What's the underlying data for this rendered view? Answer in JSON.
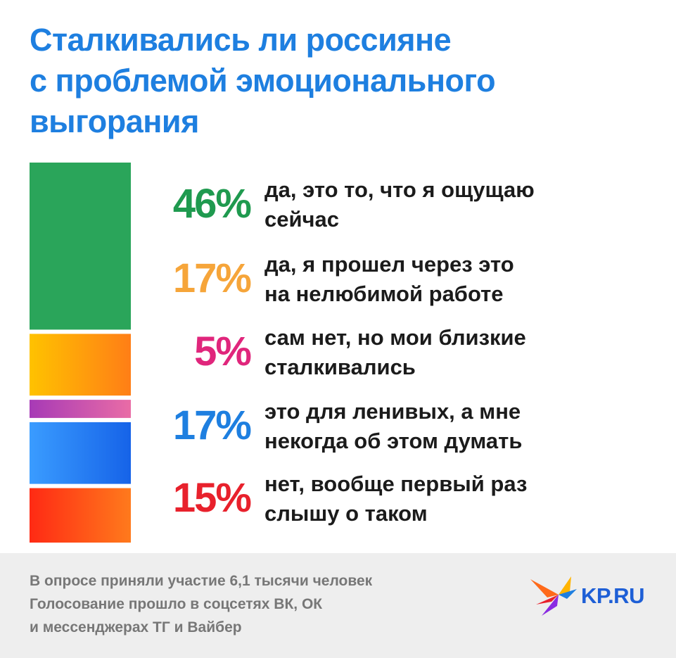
{
  "title_lines": [
    "Сталкивались ли россияне",
    "с проблемой эмоционального",
    "выгорания"
  ],
  "chart_data": {
    "type": "bar",
    "stacked": true,
    "categories": [
      "да, это то, что я ощущаю сейчас",
      "да, я прошел через это на нелюбимой работе",
      "сам нет, но мои близкие сталкивались",
      "это для ленивых, а мне некогда об этом думать",
      "нет, вообще первый раз слышу о таком"
    ],
    "values": [
      46,
      17,
      5,
      17,
      15
    ],
    "unit": "%",
    "items": [
      {
        "value_label": "46%",
        "lines": [
          "да, это то, что я ощущаю",
          "сейчас"
        ],
        "color": "#1f9a4f",
        "bar_colors": [
          "#2aa55a",
          "#2aa55a"
        ]
      },
      {
        "value_label": "17%",
        "lines": [
          "да, я прошел через это",
          "на нелюбимой работе"
        ],
        "color": "#f6a53a",
        "bar_colors": [
          "#ffc200",
          "#ff7e16"
        ]
      },
      {
        "value_label": "5%",
        "lines": [
          "сам нет, но мои близкие",
          "сталкивались"
        ],
        "color": "#e0267c",
        "bar_colors": [
          "#a73ab6",
          "#e96ca6"
        ]
      },
      {
        "value_label": "17%",
        "lines": [
          "это для ленивых, а мне",
          "некогда об этом думать"
        ],
        "color": "#1e7fe0",
        "bar_colors": [
          "#3a9cff",
          "#1663e8"
        ]
      },
      {
        "value_label": "15%",
        "lines": [
          "нет, вообще первый раз",
          "слышу о таком"
        ],
        "color": "#e8212c",
        "bar_colors": [
          "#ff2a14",
          "#ff7a1c"
        ]
      }
    ]
  },
  "footer_lines": [
    "В опросе приняли участие 6,1 тысячи человек",
    "Голосование прошло в соцсетях ВК, ОК",
    "и мессенджерах ТГ и Вайбер"
  ],
  "logo": {
    "text": "KP.RU",
    "icon": "kp-bird-logo-icon"
  }
}
